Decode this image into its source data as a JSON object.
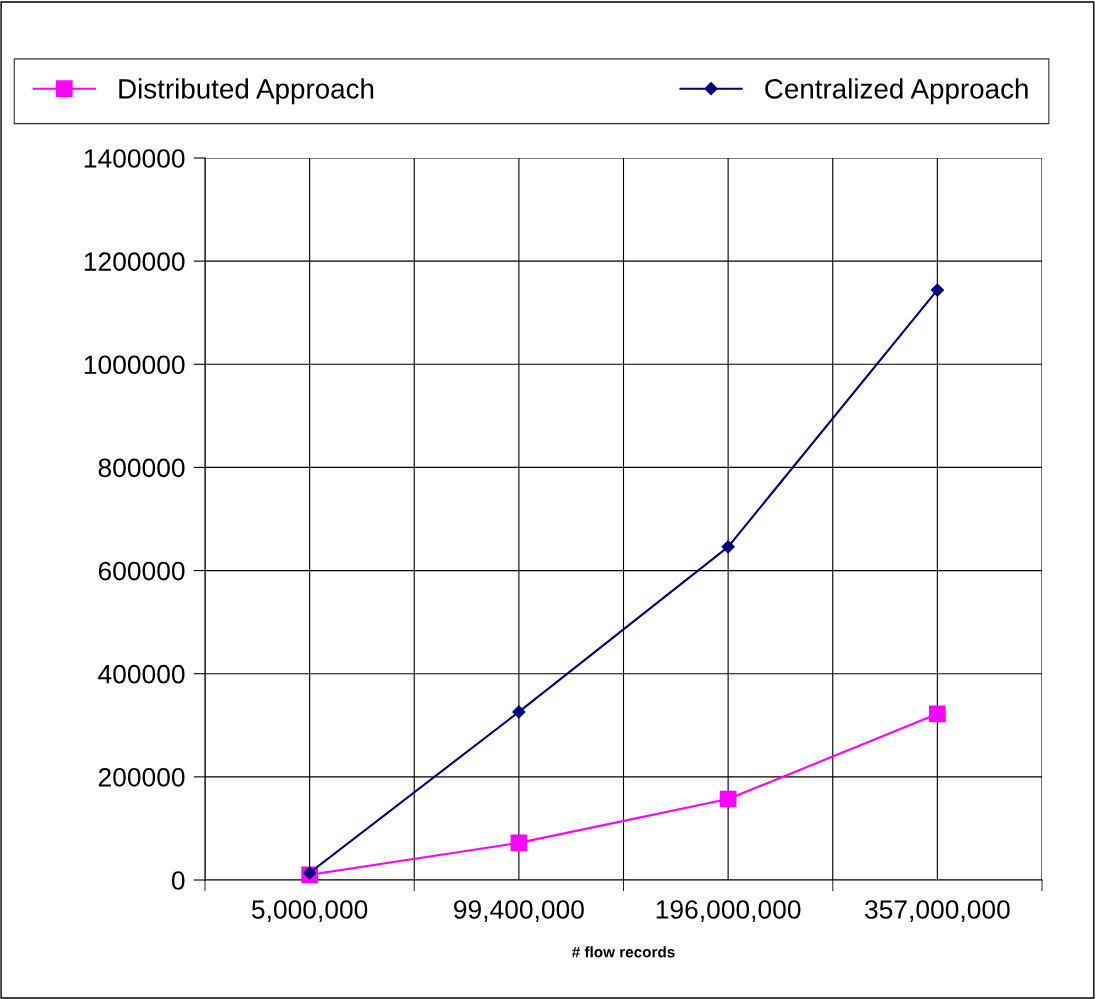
{
  "chart_data": {
    "type": "line",
    "xlabel": "# flow records",
    "categories": [
      "5,000,000",
      "99,400,000",
      "196,000,000",
      "357,000,000"
    ],
    "series": [
      {
        "name": "Distributed Approach",
        "color": "#ff00ff",
        "marker": "square",
        "values": [
          10000,
          72000,
          157000,
          322000
        ]
      },
      {
        "name": "Centralized Approach",
        "color": "#000080",
        "marker": "diamond",
        "values": [
          14000,
          326000,
          646000,
          1144000
        ]
      }
    ],
    "ylim": [
      0,
      1400000
    ],
    "yticks": [
      0,
      200000,
      400000,
      600000,
      800000,
      1000000,
      1200000,
      1400000
    ],
    "grid": true,
    "legend": "top"
  }
}
